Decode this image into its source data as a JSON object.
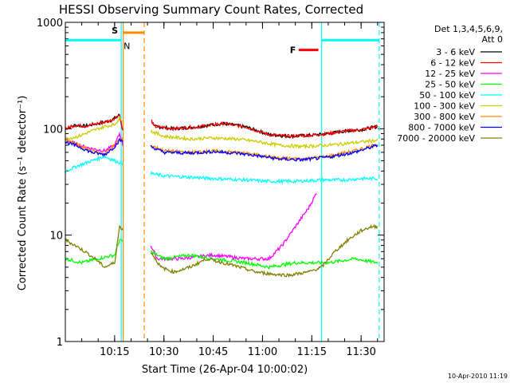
{
  "chart_data": {
    "type": "line",
    "title": "HESSI Observing Summary Count Rates, Corrected",
    "xlabel": "Start Time (26-Apr-04 10:00:02)",
    "ylabel": "Corrected Count Rate (s⁻¹ detector⁻¹)",
    "y_scale": "log",
    "ylim": [
      1,
      1000
    ],
    "xlim_minutes": [
      0,
      97
    ],
    "x_ticks": [
      "10:15",
      "10:30",
      "10:45",
      "11:00",
      "11:15",
      "11:30"
    ],
    "x_tick_minutes": [
      15,
      30,
      45,
      60,
      75,
      90
    ],
    "y_ticks": [
      "1",
      "10",
      "100",
      "1000"
    ],
    "y_tick_values": [
      1,
      10,
      100,
      1000
    ],
    "legend_header": [
      "Det 1,3,4,5,6,9,",
      "Att 0"
    ],
    "legend_placement": "right",
    "timestamp": "10-Apr-2010 11:19",
    "annotations": {
      "saa": "S",
      "night": "N",
      "flare": "F"
    },
    "bars": [
      {
        "label": "S",
        "color": "#ff8c00",
        "x_start": 17.5,
        "x_end": 24,
        "y": 800
      },
      {
        "label": "F",
        "color": "#ff0000",
        "x_start": 71,
        "x_end": 77,
        "y": 550
      }
    ],
    "night_segments": [
      [
        0,
        17
      ],
      [
        78,
        95.5
      ]
    ],
    "night_level": 680,
    "night_color": "#00ffff",
    "vlines": [
      {
        "x": 17,
        "color": "#00ffff",
        "style": "solid"
      },
      {
        "x": 17.6,
        "color": "#ff8c00",
        "style": "solid"
      },
      {
        "x": 24,
        "color": "#ff8c00",
        "style": "dashed"
      },
      {
        "x": 78,
        "color": "#00ffff",
        "style": "solid"
      },
      {
        "x": 95.5,
        "color": "#00ffff",
        "style": "dashed"
      }
    ],
    "gap": [
      17.6,
      26
    ],
    "series": [
      {
        "name": "3 - 6 keV",
        "color": "#000000",
        "points": [
          [
            0,
            100
          ],
          [
            3,
            108
          ],
          [
            6,
            106
          ],
          [
            10,
            112
          ],
          [
            14,
            120
          ],
          [
            16.5,
            135
          ],
          [
            17.5,
            95
          ],
          [
            26,
            125
          ],
          [
            27,
            105
          ],
          [
            33,
            100
          ],
          [
            40,
            104
          ],
          [
            48,
            112
          ],
          [
            55,
            104
          ],
          [
            62,
            88
          ],
          [
            68,
            85
          ],
          [
            75,
            87
          ],
          [
            80,
            90
          ],
          [
            85,
            95
          ],
          [
            90,
            98
          ],
          [
            95,
            105
          ]
        ]
      },
      {
        "name": "6 - 12 keV",
        "color": "#ff0000",
        "points": [
          [
            0,
            100
          ],
          [
            3,
            108
          ],
          [
            6,
            106
          ],
          [
            10,
            112
          ],
          [
            14,
            120
          ],
          [
            16.5,
            135
          ],
          [
            17.5,
            95
          ],
          [
            26,
            125
          ],
          [
            27,
            105
          ],
          [
            33,
            100
          ],
          [
            40,
            104
          ],
          [
            48,
            112
          ],
          [
            55,
            104
          ],
          [
            62,
            88
          ],
          [
            68,
            85
          ],
          [
            75,
            87
          ],
          [
            80,
            90
          ],
          [
            85,
            95
          ],
          [
            90,
            98
          ],
          [
            95,
            105
          ]
        ]
      },
      {
        "name": "12 - 25 keV",
        "color": "#ff00ff",
        "points": [
          [
            0,
            80
          ],
          [
            4,
            70
          ],
          [
            8,
            65
          ],
          [
            12,
            62
          ],
          [
            15,
            70
          ],
          [
            16.5,
            90
          ],
          [
            26,
            8
          ],
          [
            28,
            6
          ],
          [
            35,
            6
          ],
          [
            45,
            6.5
          ],
          [
            55,
            6
          ],
          [
            62,
            6
          ],
          [
            66,
            8
          ],
          [
            70,
            12
          ],
          [
            74,
            18
          ],
          [
            76.5,
            25
          ]
        ]
      },
      {
        "name": "25 - 50 keV",
        "color": "#00ff00",
        "points": [
          [
            0,
            6
          ],
          [
            5,
            5.5
          ],
          [
            10,
            6
          ],
          [
            15,
            6.5
          ],
          [
            16.5,
            9
          ],
          [
            26,
            7
          ],
          [
            30,
            6
          ],
          [
            38,
            6.5
          ],
          [
            45,
            6
          ],
          [
            55,
            5.5
          ],
          [
            62,
            5
          ],
          [
            70,
            5.5
          ],
          [
            80,
            5.5
          ],
          [
            88,
            6
          ],
          [
            95,
            5.5
          ]
        ]
      },
      {
        "name": "50 - 100 keV",
        "color": "#00ffff",
        "points": [
          [
            0,
            40
          ],
          [
            4,
            45
          ],
          [
            8,
            50
          ],
          [
            12,
            55
          ],
          [
            15,
            50
          ],
          [
            16.5,
            48
          ],
          [
            26,
            38
          ],
          [
            30,
            36
          ],
          [
            38,
            35
          ],
          [
            45,
            34
          ],
          [
            55,
            33
          ],
          [
            62,
            32
          ],
          [
            70,
            32
          ],
          [
            78,
            33
          ],
          [
            85,
            33
          ],
          [
            90,
            34
          ],
          [
            95,
            34
          ]
        ]
      },
      {
        "name": "100 - 300 keV",
        "color": "#cccc00",
        "points": [
          [
            0,
            80
          ],
          [
            4,
            85
          ],
          [
            8,
            95
          ],
          [
            12,
            105
          ],
          [
            15,
            110
          ],
          [
            16.5,
            125
          ],
          [
            26,
            95
          ],
          [
            30,
            85
          ],
          [
            38,
            80
          ],
          [
            45,
            82
          ],
          [
            52,
            80
          ],
          [
            58,
            76
          ],
          [
            65,
            70
          ],
          [
            72,
            68
          ],
          [
            80,
            70
          ],
          [
            88,
            74
          ],
          [
            95,
            78
          ]
        ]
      },
      {
        "name": "300 - 800 keV",
        "color": "#ff8c00",
        "points": [
          [
            0,
            78
          ],
          [
            4,
            70
          ],
          [
            8,
            62
          ],
          [
            12,
            58
          ],
          [
            15,
            70
          ],
          [
            16.5,
            80
          ],
          [
            26,
            70
          ],
          [
            30,
            62
          ],
          [
            38,
            60
          ],
          [
            45,
            62
          ],
          [
            52,
            60
          ],
          [
            58,
            57
          ],
          [
            65,
            53
          ],
          [
            72,
            52
          ],
          [
            80,
            55
          ],
          [
            88,
            62
          ],
          [
            95,
            72
          ]
        ]
      },
      {
        "name": "800 - 7000 keV",
        "color": "#0000ff",
        "points": [
          [
            0,
            75
          ],
          [
            4,
            68
          ],
          [
            8,
            60
          ],
          [
            12,
            57
          ],
          [
            15,
            68
          ],
          [
            16.5,
            78
          ],
          [
            26,
            68
          ],
          [
            30,
            60
          ],
          [
            38,
            59
          ],
          [
            45,
            61
          ],
          [
            52,
            59
          ],
          [
            58,
            56
          ],
          [
            65,
            52
          ],
          [
            72,
            51
          ],
          [
            80,
            54
          ],
          [
            88,
            60
          ],
          [
            95,
            70
          ]
        ]
      },
      {
        "name": "7000 - 20000 keV",
        "color": "#808000",
        "points": [
          [
            0,
            9
          ],
          [
            3,
            8
          ],
          [
            6,
            7
          ],
          [
            9,
            6
          ],
          [
            12,
            5
          ],
          [
            15,
            5.5
          ],
          [
            16.5,
            12
          ],
          [
            26,
            7
          ],
          [
            29,
            5
          ],
          [
            33,
            4.5
          ],
          [
            38,
            5
          ],
          [
            43,
            6
          ],
          [
            48,
            5.5
          ],
          [
            53,
            5
          ],
          [
            58,
            4.5
          ],
          [
            63,
            4.3
          ],
          [
            68,
            4.2
          ],
          [
            74,
            4.5
          ],
          [
            78,
            5
          ],
          [
            82,
            7
          ],
          [
            86,
            9
          ],
          [
            90,
            11
          ],
          [
            93,
            12
          ],
          [
            95,
            12
          ]
        ]
      }
    ]
  }
}
